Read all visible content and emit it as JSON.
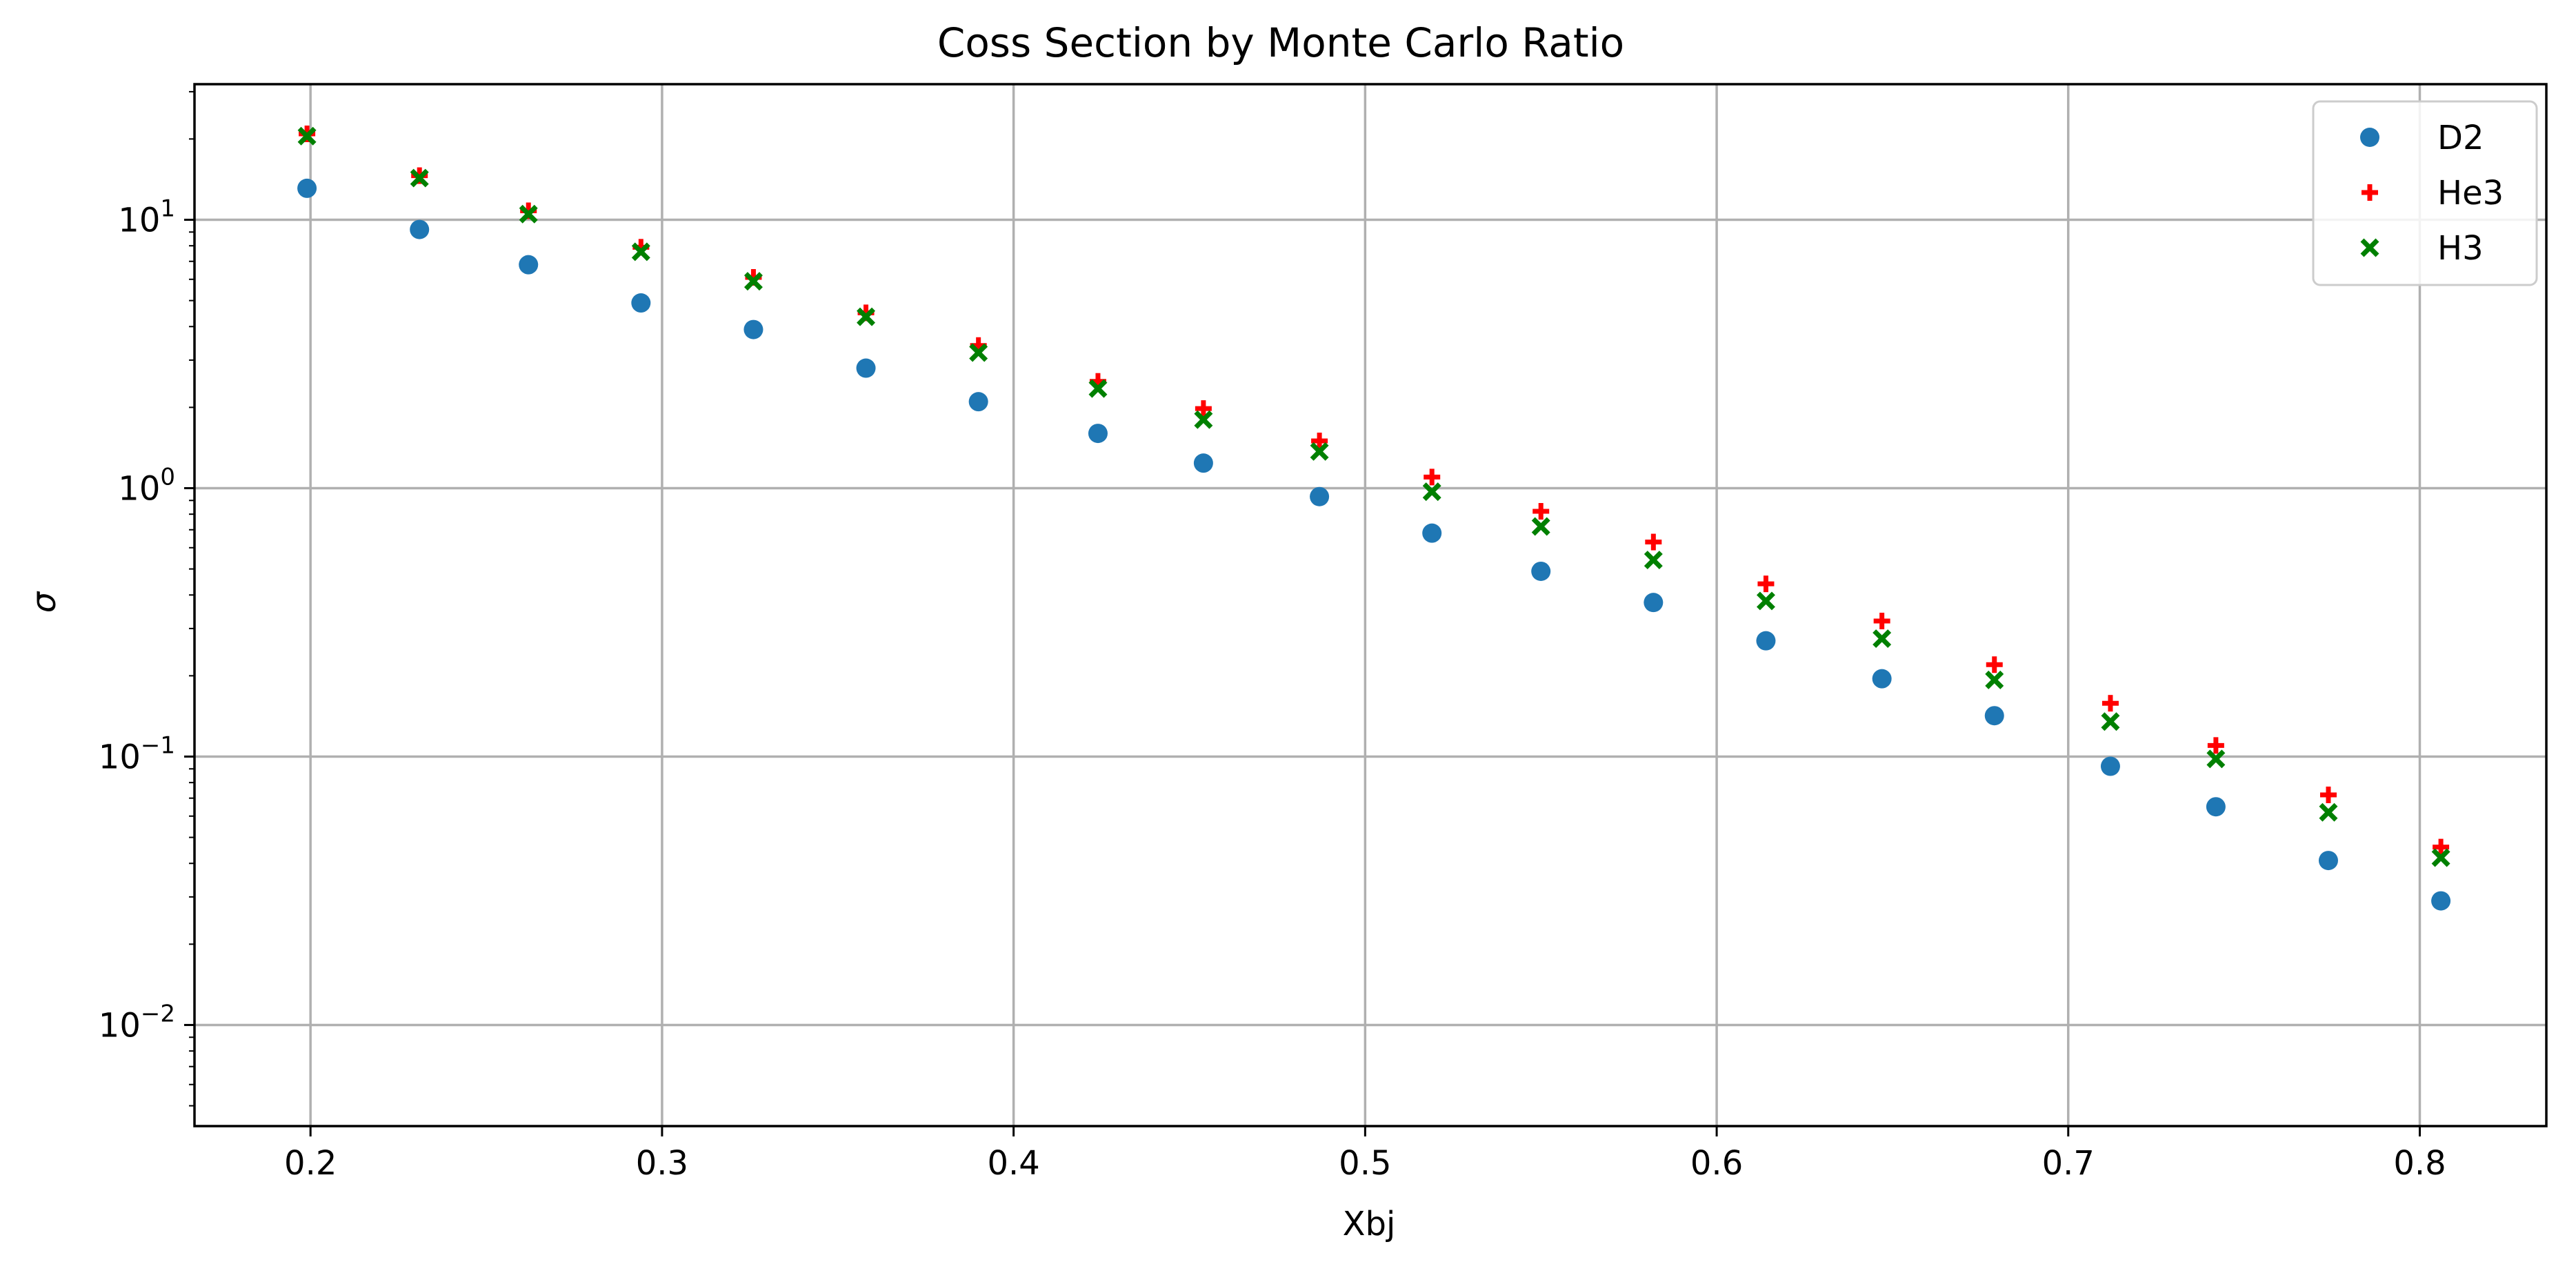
{
  "chart_data": {
    "type": "scatter",
    "title": "Coss Section by Monte Carlo Ratio",
    "xlabel": "Xbj",
    "ylabel": "σ",
    "xlim": [
      0.167,
      0.836
    ],
    "ylim": [
      0.0042,
      32
    ],
    "yscale": "log",
    "grid": true,
    "legend_position": "top-right",
    "x_ticks": [
      {
        "value": 0.2,
        "label": "0.2"
      },
      {
        "value": 0.3,
        "label": "0.3"
      },
      {
        "value": 0.4,
        "label": "0.4"
      },
      {
        "value": 0.5,
        "label": "0.5"
      },
      {
        "value": 0.6,
        "label": "0.6"
      },
      {
        "value": 0.7,
        "label": "0.7"
      },
      {
        "value": 0.8,
        "label": "0.8"
      }
    ],
    "y_ticks": [
      {
        "value": 10,
        "base": "10",
        "exp": "1"
      },
      {
        "value": 1,
        "base": "10",
        "exp": "0"
      },
      {
        "value": 0.1,
        "base": "10",
        "exp": "−1"
      },
      {
        "value": 0.01,
        "base": "10",
        "exp": "−2"
      }
    ],
    "x": [
      0.199,
      0.231,
      0.262,
      0.294,
      0.326,
      0.358,
      0.39,
      0.424,
      0.454,
      0.487,
      0.519,
      0.55,
      0.582,
      0.614,
      0.647,
      0.679,
      0.712,
      0.742,
      0.774,
      0.806
    ],
    "series": [
      {
        "name": "D2",
        "marker": "circle",
        "color": "#1f77b4",
        "values": [
          13.1,
          9.2,
          6.8,
          4.9,
          3.9,
          2.8,
          2.1,
          1.6,
          1.24,
          0.93,
          0.68,
          0.49,
          0.375,
          0.27,
          0.195,
          0.142,
          0.092,
          0.065,
          0.041,
          0.029
        ]
      },
      {
        "name": "He3",
        "marker": "plus",
        "color": "#ff0000",
        "values": [
          20.9,
          14.6,
          10.8,
          7.9,
          6.1,
          4.5,
          3.4,
          2.5,
          1.98,
          1.5,
          1.1,
          0.82,
          0.63,
          0.44,
          0.32,
          0.22,
          0.158,
          0.11,
          0.072,
          0.046
        ]
      },
      {
        "name": "H3",
        "marker": "x",
        "color": "#008000",
        "values": [
          20.5,
          14.3,
          10.5,
          7.6,
          5.9,
          4.35,
          3.2,
          2.35,
          1.8,
          1.37,
          0.97,
          0.72,
          0.54,
          0.38,
          0.275,
          0.193,
          0.135,
          0.098,
          0.062,
          0.042
        ]
      }
    ]
  }
}
